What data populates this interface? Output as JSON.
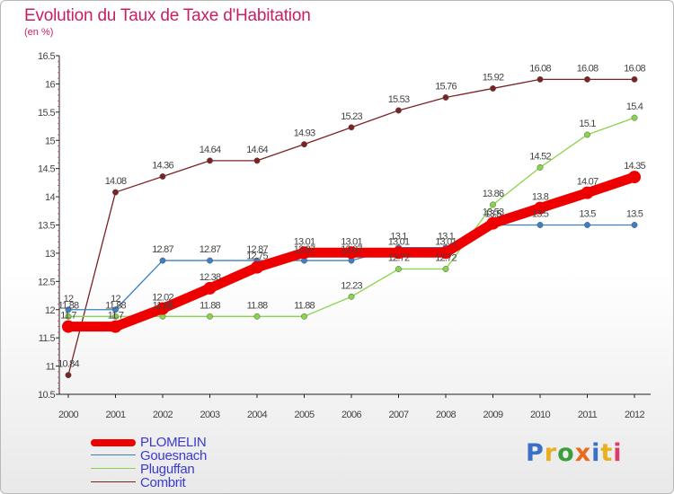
{
  "header": {
    "title": "Evolution du Taux de Taxe d'Habitation",
    "subtitle": "(en %)"
  },
  "chart_data": {
    "type": "line",
    "title": "Evolution du Taux de Taxe d'Habitation",
    "ylabel": "(en %)",
    "x": [
      "2000",
      "2001",
      "2002",
      "2003",
      "2004",
      "2005",
      "2006",
      "2007",
      "2008",
      "2009",
      "2010",
      "2011",
      "2012"
    ],
    "ylim": [
      10.5,
      16.5
    ],
    "yticks": [
      "10.5",
      "11",
      "11.5",
      "12",
      "12.5",
      "13",
      "13.5",
      "14",
      "14.5",
      "15",
      "15.5",
      "16",
      "16.5"
    ],
    "grid": false,
    "legend": "bottom-left",
    "series": [
      {
        "name": "PLOMELIN",
        "color": "#ee0000",
        "values": [
          11.7,
          11.7,
          12.02,
          12.38,
          12.75,
          13.01,
          13.01,
          13.01,
          13.01,
          13.53,
          13.8,
          14.07,
          14.35
        ],
        "labels": [
          "11.7",
          "11.7",
          "12.02",
          "12.38",
          "12.75",
          "13.01",
          "13.01",
          "13.01",
          "13.01",
          "13.53",
          "13.8",
          "14.07",
          "14.35"
        ]
      },
      {
        "name": "Gouesnach",
        "color": "#3d7fc4",
        "values": [
          12,
          12,
          12.87,
          12.87,
          12.87,
          12.87,
          12.87,
          13.1,
          13.1,
          13.5,
          13.5,
          13.5,
          13.5
        ],
        "labels": [
          "12",
          "12",
          "12.87",
          "12.87",
          "12.87",
          "12.87",
          "12.87",
          "13.1",
          "13.1",
          "13.5",
          "13.5",
          "13.5",
          "13.5"
        ]
      },
      {
        "name": "Pluguffan",
        "color": "#88d44a",
        "values": [
          11.88,
          11.88,
          11.88,
          11.88,
          11.88,
          11.88,
          12.23,
          12.72,
          12.72,
          13.86,
          14.52,
          15.1,
          15.4
        ],
        "labels": [
          "11.88",
          "11.88",
          "11.88",
          "11.88",
          "11.88",
          "11.88",
          "12.23",
          "12.72",
          "12.72",
          "13.86",
          "14.52",
          "15.1",
          "15.4"
        ]
      },
      {
        "name": "Combrit",
        "color": "#7b2323",
        "values": [
          10.84,
          14.08,
          14.36,
          14.64,
          14.64,
          14.93,
          15.23,
          15.53,
          15.76,
          15.92,
          16.08,
          16.08,
          16.08
        ],
        "labels": [
          "10.84",
          "14.08",
          "14.36",
          "14.64",
          "14.64",
          "14.93",
          "15.23",
          "15.53",
          "15.76",
          "15.92",
          "16.08",
          "16.08",
          "16.08"
        ]
      }
    ]
  },
  "legend": {
    "items": [
      {
        "label": "PLOMELIN"
      },
      {
        "label": "Gouesnach"
      },
      {
        "label": "Pluguffan"
      },
      {
        "label": "Combrit"
      }
    ]
  },
  "logo": {
    "text": "Proxiti",
    "letters": [
      "P",
      "r",
      "o",
      "x",
      "i",
      "t",
      "i"
    ],
    "letter_colors": [
      "#3b6fc8",
      "#e8b020",
      "#3b9e3b",
      "#e86a1a",
      "#3b6fc8",
      "#e8b020",
      "#e03a6a"
    ]
  }
}
